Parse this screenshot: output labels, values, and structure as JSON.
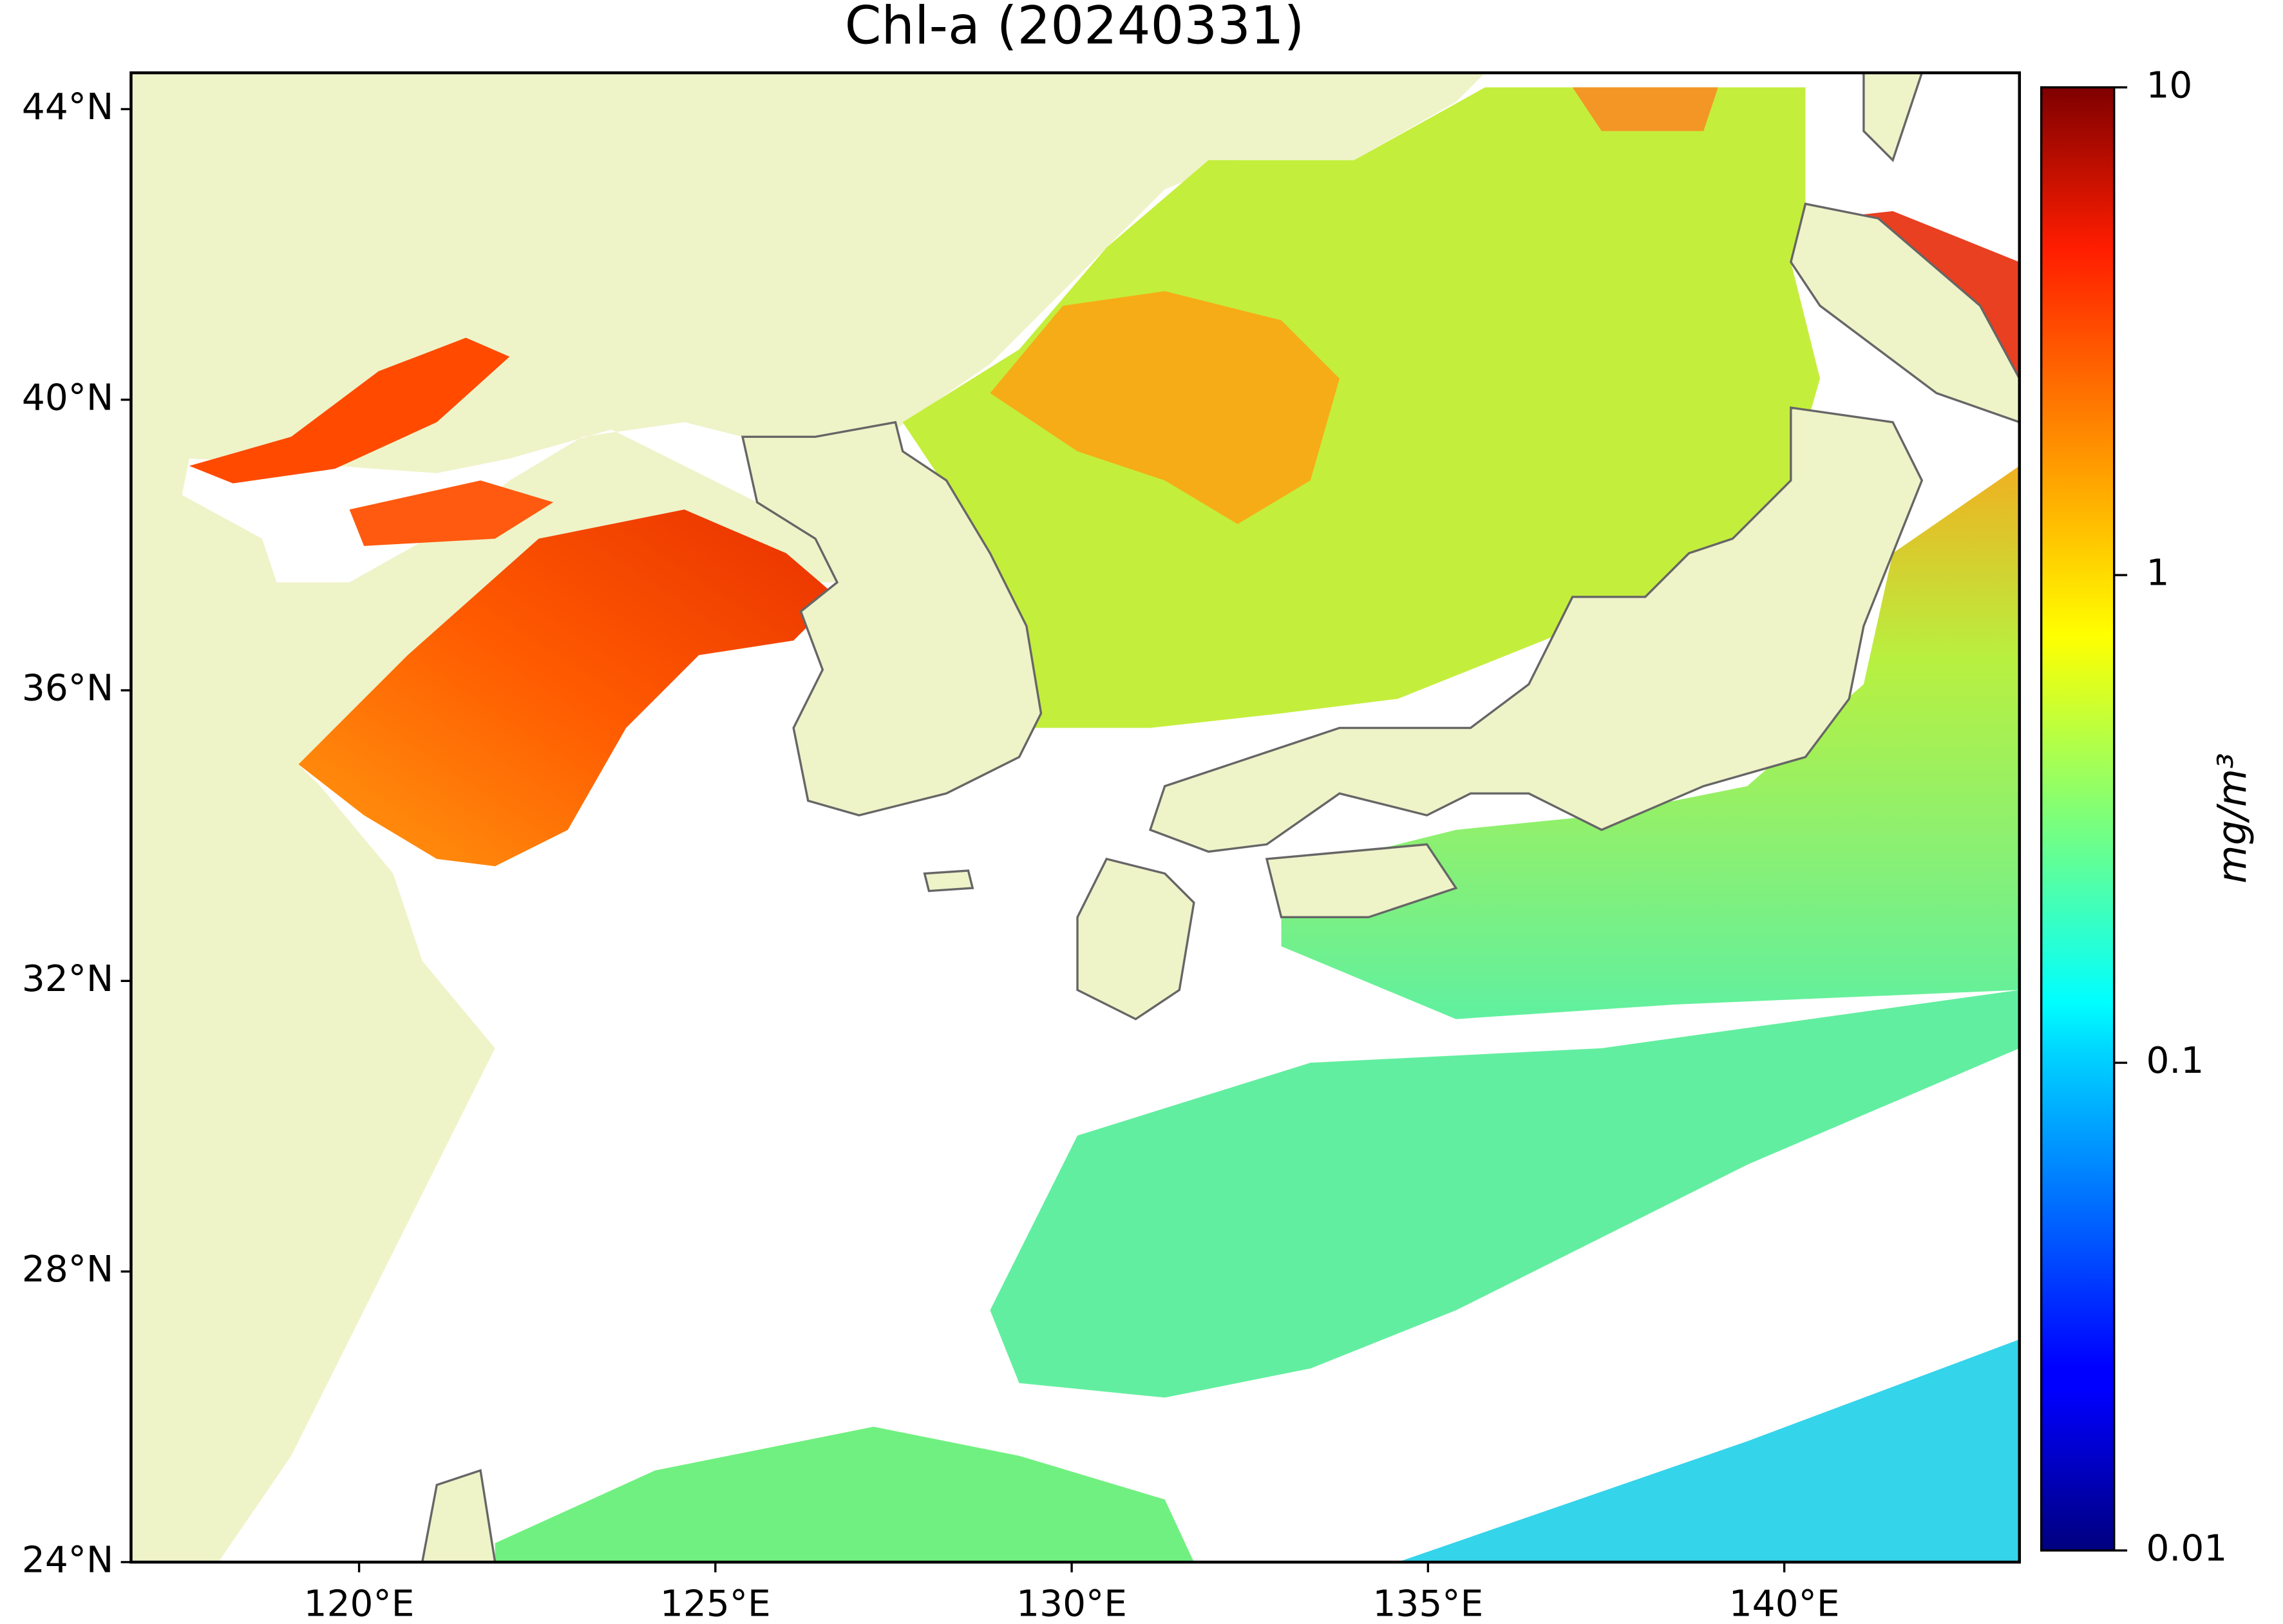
{
  "chart_data": {
    "type": "map",
    "title": "Chl-a (20240331)",
    "xlim": [
      116.8,
      143.3
    ],
    "ylim": [
      24,
      44.5
    ],
    "xticks": [
      {
        "value": 120,
        "label": "120°E"
      },
      {
        "value": 125,
        "label": "125°E"
      },
      {
        "value": 130,
        "label": "130°E"
      },
      {
        "value": 135,
        "label": "135°E"
      },
      {
        "value": 140,
        "label": "140°E"
      }
    ],
    "yticks": [
      {
        "value": 24,
        "label": "24°N"
      },
      {
        "value": 28,
        "label": "28°N"
      },
      {
        "value": 32,
        "label": "32°N"
      },
      {
        "value": 36,
        "label": "36°N"
      },
      {
        "value": 40,
        "label": "40°N"
      },
      {
        "value": 44,
        "label": "44°N"
      }
    ],
    "colorbar": {
      "scale": "log",
      "colormap": "jet",
      "lim": [
        0.01,
        10
      ],
      "ticks": [
        0.01,
        0.1,
        1,
        10
      ],
      "label": "mg/m³"
    }
  }
}
